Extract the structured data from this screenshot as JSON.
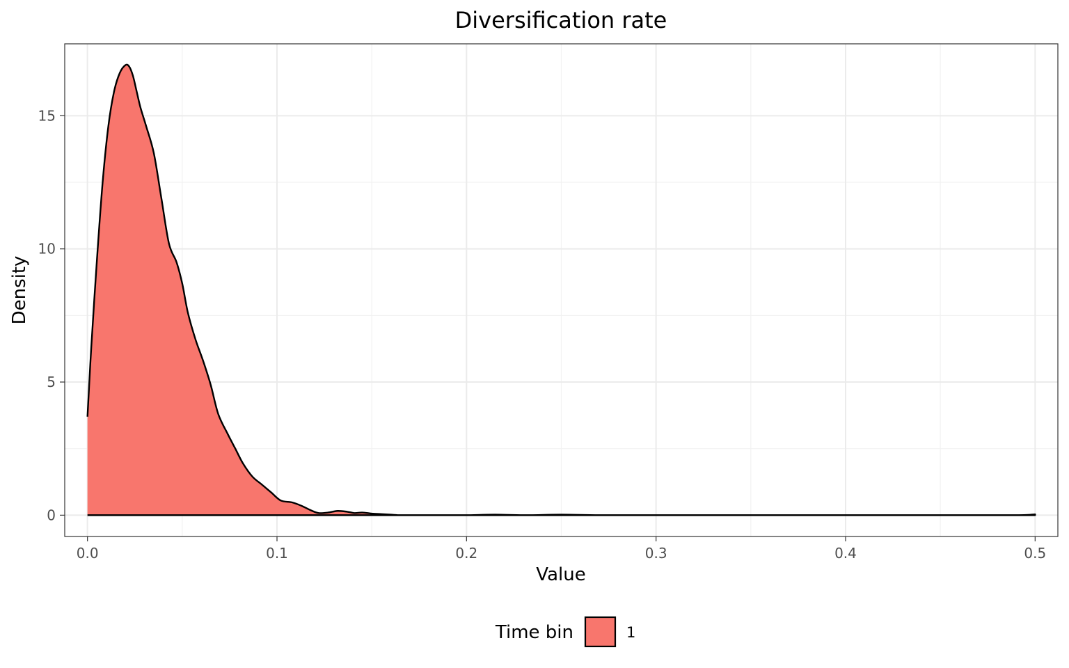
{
  "chart_data": {
    "type": "area",
    "title": "Diversification rate",
    "xlabel": "Value",
    "ylabel": "Density",
    "xlim": [
      -0.012,
      0.512
    ],
    "ylim": [
      -0.8,
      17.7
    ],
    "x_ticks": [
      0.0,
      0.1,
      0.2,
      0.3,
      0.4,
      0.5
    ],
    "x_tick_labels": [
      "0.0",
      "0.1",
      "0.2",
      "0.3",
      "0.4",
      "0.5"
    ],
    "y_ticks": [
      0,
      5,
      10,
      15
    ],
    "y_tick_labels": [
      "0",
      "5",
      "10",
      "15"
    ],
    "grid": true,
    "legend": {
      "title": "Time bin",
      "position": "bottom",
      "entries": [
        {
          "label": "1",
          "color": "#F8766D"
        }
      ]
    },
    "series": [
      {
        "name": "1",
        "color": "#F8766D",
        "outline": "#000000",
        "x": [
          0.0,
          0.002,
          0.005,
          0.008,
          0.011,
          0.014,
          0.017,
          0.02,
          0.022,
          0.024,
          0.026,
          0.028,
          0.031,
          0.035,
          0.039,
          0.043,
          0.047,
          0.05,
          0.053,
          0.057,
          0.061,
          0.065,
          0.069,
          0.074,
          0.078,
          0.082,
          0.087,
          0.092,
          0.097,
          0.102,
          0.108,
          0.113,
          0.118,
          0.122,
          0.127,
          0.132,
          0.137,
          0.141,
          0.145,
          0.15,
          0.155,
          0.16,
          0.165,
          0.17,
          0.175,
          0.18,
          0.185,
          0.19,
          0.2,
          0.215,
          0.23,
          0.25,
          0.27,
          0.3,
          0.35,
          0.4,
          0.45,
          0.49,
          0.5
        ],
        "y": [
          3.7,
          6.3,
          9.6,
          12.5,
          14.6,
          15.9,
          16.6,
          16.9,
          16.85,
          16.5,
          15.9,
          15.3,
          14.6,
          13.6,
          11.9,
          10.2,
          9.5,
          8.7,
          7.6,
          6.6,
          5.8,
          4.9,
          3.8,
          3.05,
          2.5,
          1.95,
          1.45,
          1.15,
          0.85,
          0.55,
          0.48,
          0.35,
          0.18,
          0.08,
          0.1,
          0.16,
          0.13,
          0.08,
          0.1,
          0.06,
          0.04,
          0.02,
          0.0,
          0.0,
          0.0,
          0.0,
          0.0,
          0.0,
          0.0,
          0.02,
          0.0,
          0.02,
          0.0,
          0.0,
          0.0,
          0.0,
          0.0,
          0.0,
          0.03
        ]
      }
    ]
  },
  "colors": {
    "fill": "#F8766D",
    "outline": "#000000",
    "grid_major": "#EBEBEB",
    "grid_minor": "#F2F2F2",
    "panel_border": "#333333",
    "tick_text": "#4D4D4D"
  }
}
